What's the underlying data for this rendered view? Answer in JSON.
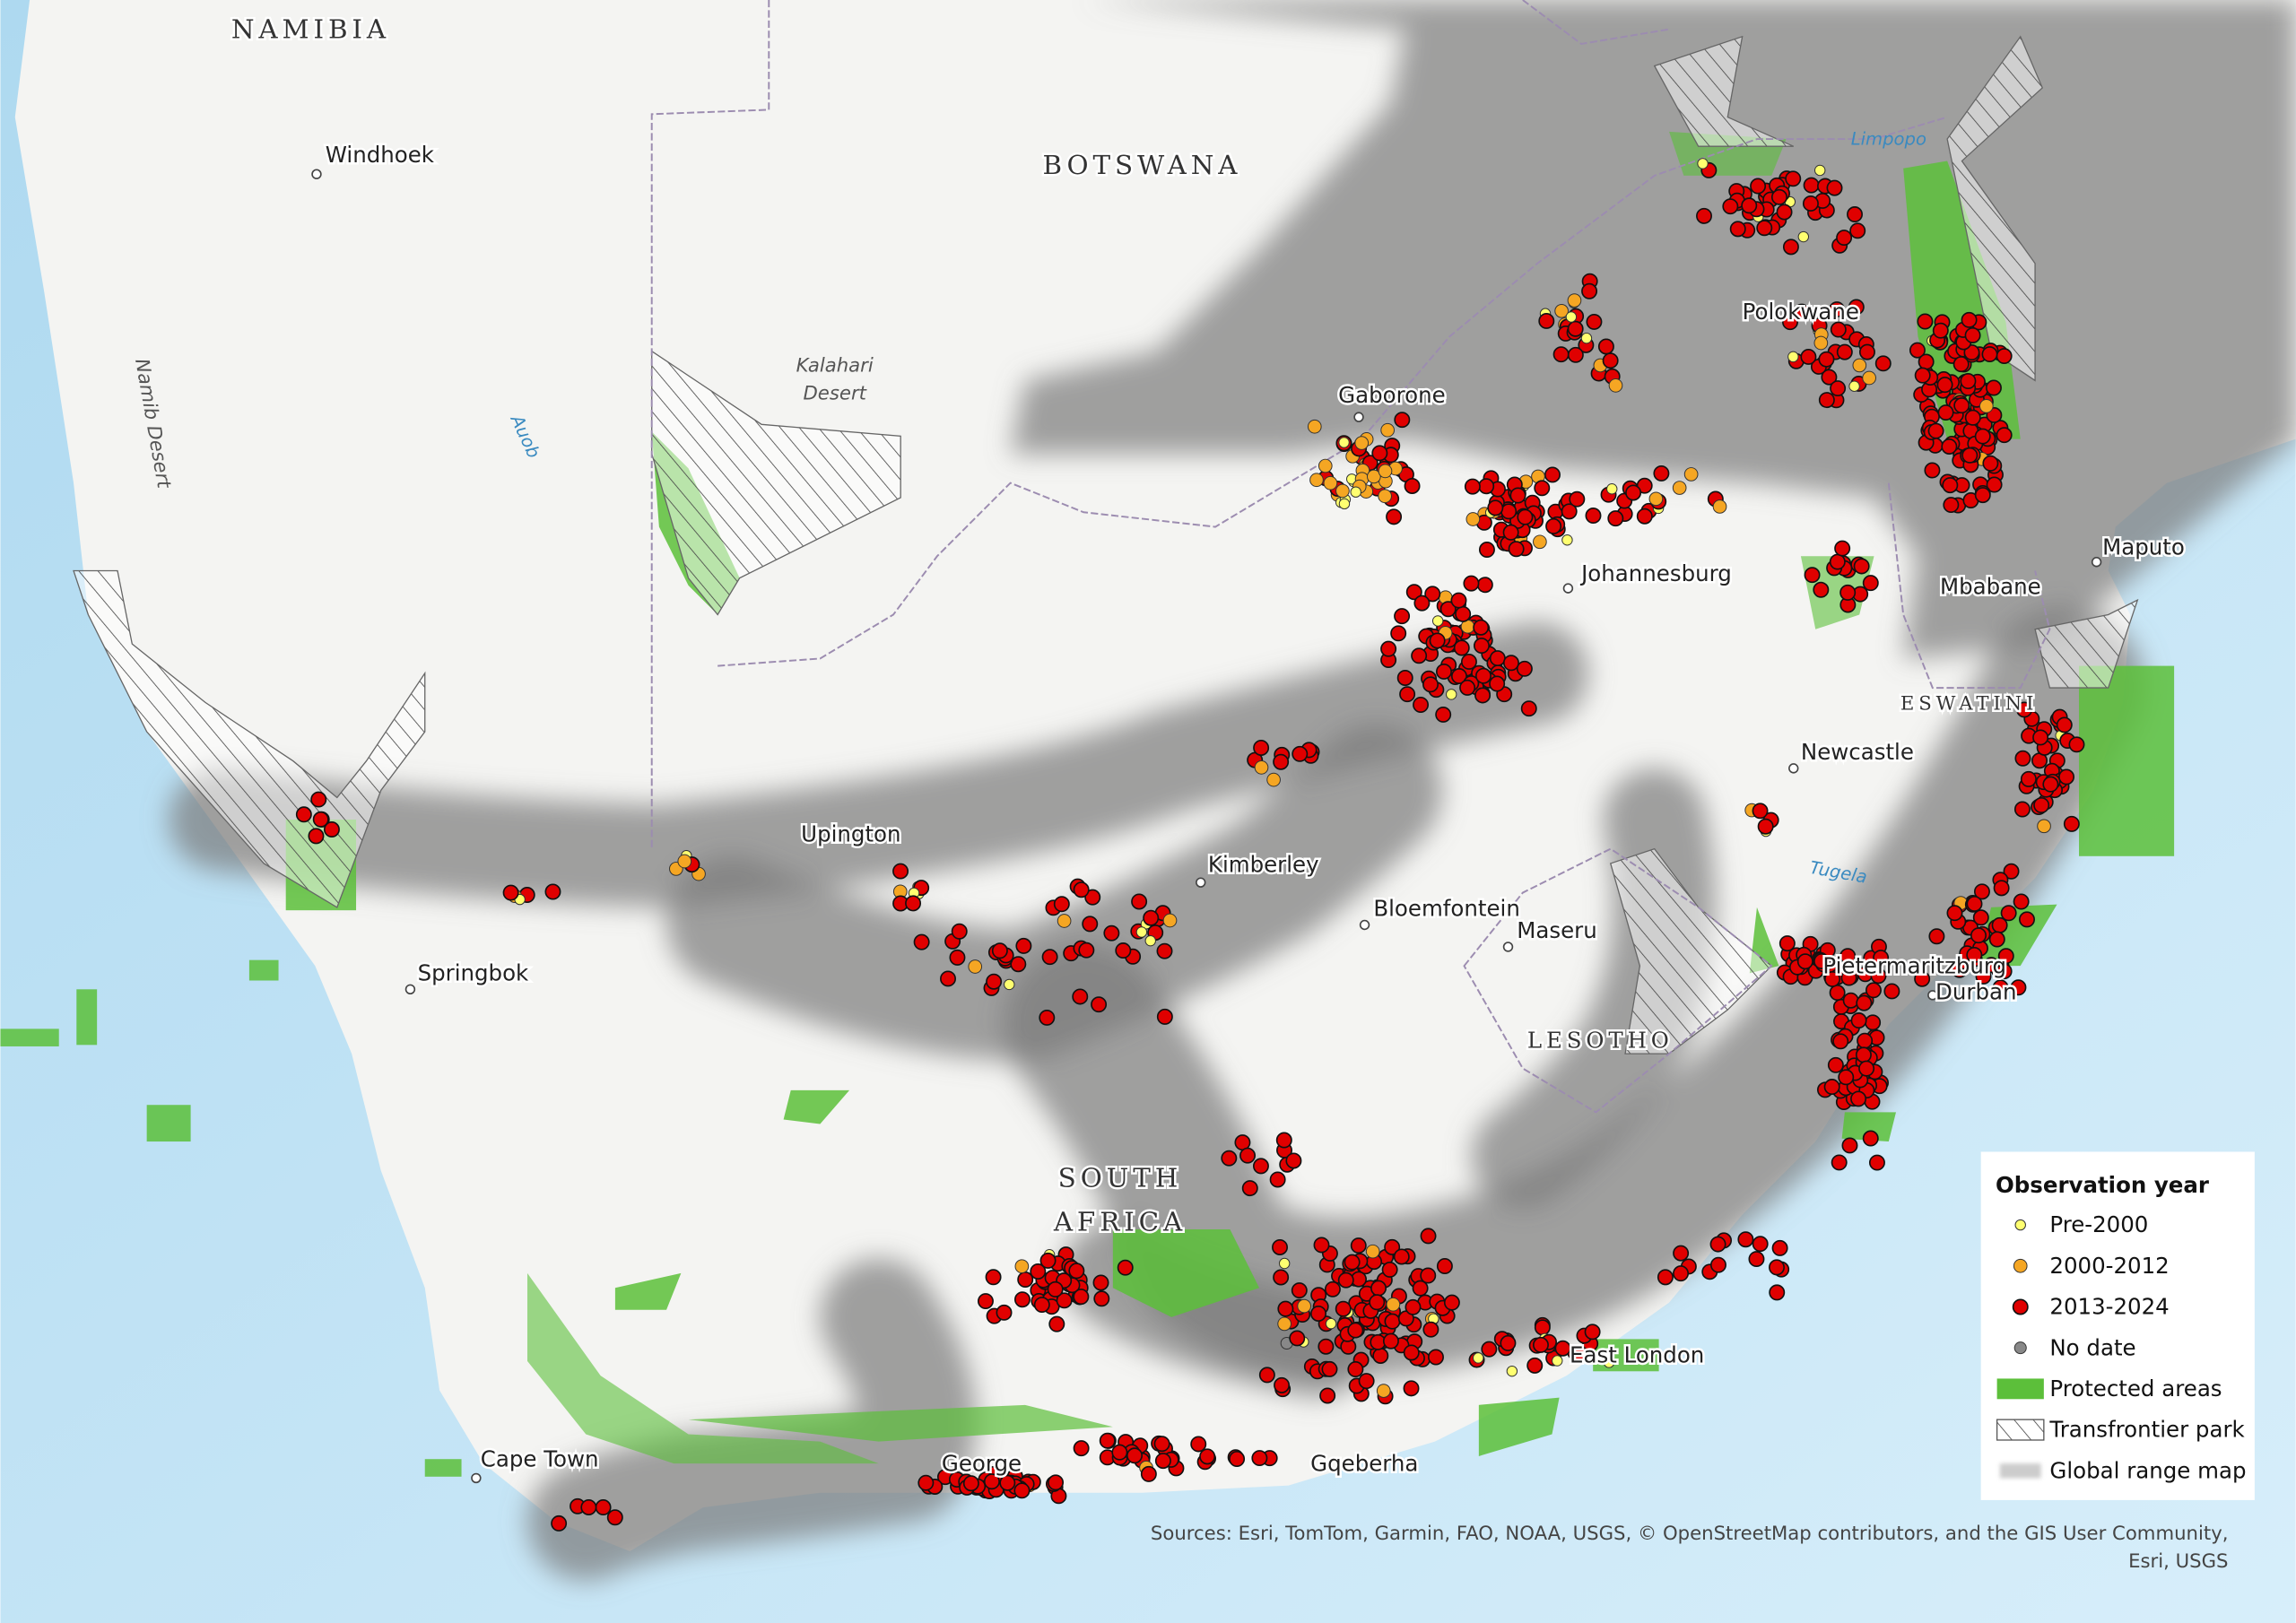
{
  "map": {
    "countries": [
      "NAMIBIA",
      "BOTSWANA",
      "SOUTH",
      "AFRICA",
      "LESOTHO",
      "ESWATINI"
    ],
    "places": [
      "Windhoek",
      "Gaborone",
      "Polokwane",
      "Johannesburg",
      "Maputo",
      "Mbabane",
      "Newcastle",
      "Upington",
      "Kimberley",
      "Bloemfontein",
      "Maseru",
      "Pietermaritzburg",
      "Durban",
      "Springbok",
      "East London",
      "Cape Town",
      "George",
      "Gqeberha"
    ],
    "features": {
      "namib": "Namib Desert",
      "kalahari": [
        "Kalahari",
        "Desert"
      ],
      "auob": "Auob",
      "limpopo": "Limpopo",
      "tugela": "Tugela"
    }
  },
  "legend": {
    "title": "Observation year",
    "items": [
      "Pre-2000",
      "2000-2012",
      "2013-2024",
      "No date",
      "Protected areas",
      "Transfrontier park",
      "Global range map"
    ]
  },
  "attribution": [
    "Sources: Esri, TomTom, Garmin, FAO, NOAA, USGS, © OpenStreetMap contributors, and the GIS User Community,",
    "Esri, USGS"
  ]
}
